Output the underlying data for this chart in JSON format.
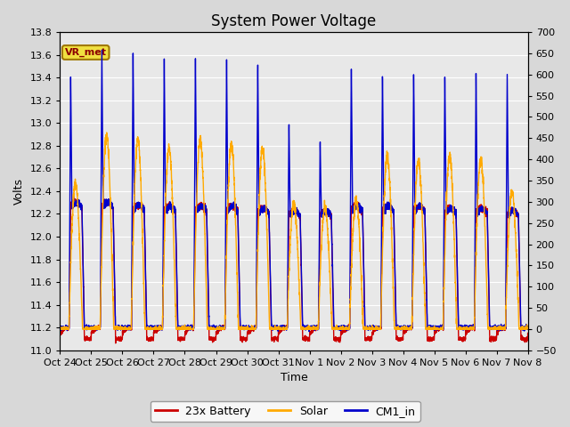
{
  "title": "System Power Voltage",
  "xlabel": "Time",
  "ylabel": "Volts",
  "ylim_left": [
    11.0,
    13.8
  ],
  "ylim_right": [
    -50,
    700
  ],
  "yticks_left": [
    11.0,
    11.2,
    11.4,
    11.6,
    11.8,
    12.0,
    12.2,
    12.4,
    12.6,
    12.8,
    13.0,
    13.2,
    13.4,
    13.6,
    13.8
  ],
  "yticks_right": [
    -50,
    0,
    50,
    100,
    150,
    200,
    250,
    300,
    350,
    400,
    450,
    500,
    550,
    600,
    650,
    700
  ],
  "xtick_labels": [
    "Oct 24",
    "Oct 25",
    "Oct 26",
    "Oct 27",
    "Oct 28",
    "Oct 29",
    "Oct 30",
    "Oct 31",
    "Nov 1",
    "Nov 2",
    "Nov 3",
    "Nov 4",
    "Nov 5",
    "Nov 6",
    "Nov 7",
    "Nov 8"
  ],
  "color_battery": "#cc0000",
  "color_solar": "#ffaa00",
  "color_cm1": "#0000cc",
  "legend_label_battery": "23x Battery",
  "legend_label_solar": "Solar",
  "legend_label_cm1": "CM1_in",
  "annotation_text": "VR_met",
  "background_color": "#d8d8d8",
  "plot_bg_color": "#e8e8e8",
  "grid_color": "#ffffff",
  "title_fontsize": 12,
  "axis_fontsize": 9,
  "tick_fontsize": 8,
  "legend_fontsize": 9,
  "linewidth": 1.0,
  "n_days": 15,
  "pts_per_day": 300
}
